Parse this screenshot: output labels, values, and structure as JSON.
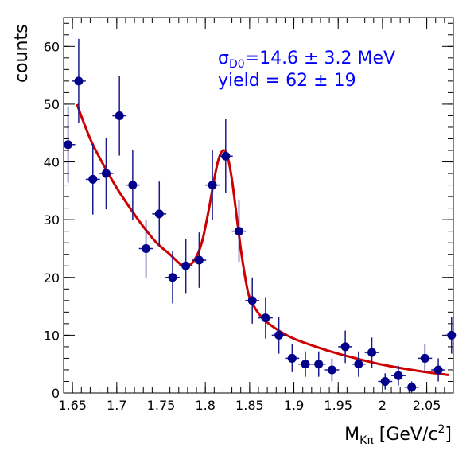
{
  "chart_data": {
    "type": "scatter",
    "xlabel_main": "M",
    "xlabel_sub": "Kπ",
    "xlabel_units_pre": " [GeV/c",
    "xlabel_units_sup": "2",
    "xlabel_units_post": "]",
    "ylabel": "counts",
    "xlim": [
      1.64,
      2.08
    ],
    "ylim": [
      0,
      65
    ],
    "x_ticks": [
      1.65,
      1.7,
      1.75,
      1.8,
      1.85,
      1.9,
      1.95,
      2.0,
      2.05
    ],
    "x_tick_labels": [
      "1.65",
      "1.7",
      "1.75",
      "1.8",
      "1.85",
      "1.9",
      "1.95",
      "2",
      "2.05"
    ],
    "y_ticks": [
      0,
      10,
      20,
      30,
      40,
      50,
      60
    ],
    "y_tick_labels": [
      "0",
      "10",
      "20",
      "30",
      "40",
      "50",
      "60"
    ],
    "grid": false,
    "annotations": {
      "sigma_symbol": "σ",
      "sigma_sub": "D0",
      "sigma_value": "=14.6 ± 3.2 MeV",
      "yield": "yield = 62 ± 19"
    },
    "bin_half_width": 0.008,
    "points": [
      {
        "x": 1.645,
        "y": 43,
        "err": 6.6
      },
      {
        "x": 1.657,
        "y": 54,
        "err": 7.3
      },
      {
        "x": 1.673,
        "y": 37,
        "err": 6.1
      },
      {
        "x": 1.688,
        "y": 38,
        "err": 6.2
      },
      {
        "x": 1.703,
        "y": 48,
        "err": 6.9
      },
      {
        "x": 1.718,
        "y": 36,
        "err": 6.0
      },
      {
        "x": 1.733,
        "y": 25,
        "err": 5.0
      },
      {
        "x": 1.748,
        "y": 31,
        "err": 5.6
      },
      {
        "x": 1.763,
        "y": 20,
        "err": 4.5
      },
      {
        "x": 1.778,
        "y": 22,
        "err": 4.7
      },
      {
        "x": 1.793,
        "y": 23,
        "err": 4.8
      },
      {
        "x": 1.808,
        "y": 36,
        "err": 6.0
      },
      {
        "x": 1.823,
        "y": 41,
        "err": 6.4
      },
      {
        "x": 1.838,
        "y": 28,
        "err": 5.3
      },
      {
        "x": 1.853,
        "y": 16,
        "err": 4.0
      },
      {
        "x": 1.868,
        "y": 13,
        "err": 3.6
      },
      {
        "x": 1.883,
        "y": 10,
        "err": 3.2
      },
      {
        "x": 1.898,
        "y": 6,
        "err": 2.4
      },
      {
        "x": 1.913,
        "y": 5,
        "err": 2.2
      },
      {
        "x": 1.928,
        "y": 5,
        "err": 2.2
      },
      {
        "x": 1.943,
        "y": 4,
        "err": 2.0
      },
      {
        "x": 1.958,
        "y": 8,
        "err": 2.8
      },
      {
        "x": 1.973,
        "y": 5,
        "err": 2.2
      },
      {
        "x": 1.988,
        "y": 7,
        "err": 2.6
      },
      {
        "x": 2.003,
        "y": 2,
        "err": 1.4
      },
      {
        "x": 2.018,
        "y": 3,
        "err": 1.7
      },
      {
        "x": 2.033,
        "y": 1,
        "err": 1.0
      },
      {
        "x": 2.048,
        "y": 6,
        "err": 2.4
      },
      {
        "x": 2.063,
        "y": 4,
        "err": 2.0
      },
      {
        "x": 2.078,
        "y": 10,
        "err": 3.2
      }
    ],
    "fit_curve": {
      "color": "#cc0000",
      "x": [
        1.655,
        1.67,
        1.685,
        1.7,
        1.715,
        1.73,
        1.745,
        1.76,
        1.775,
        1.785,
        1.795,
        1.803,
        1.81,
        1.815,
        1.82,
        1.825,
        1.83,
        1.835,
        1.84,
        1.845,
        1.85,
        1.86,
        1.87,
        1.885,
        1.9,
        1.925,
        1.95,
        1.975,
        2.0,
        2.025,
        2.05,
        2.075
      ],
      "y": [
        50,
        44,
        39.5,
        35.5,
        32,
        28.8,
        26,
        24,
        22,
        22.5,
        25.5,
        31,
        37,
        40.5,
        42,
        41,
        37,
        31,
        25,
        20,
        16.5,
        13.8,
        12.2,
        10.6,
        9.4,
        8,
        6.8,
        5.8,
        4.9,
        4.2,
        3.6,
        3.1
      ]
    },
    "marker_color": "#00008b",
    "error_bar_color": "#1a1a8c"
  }
}
